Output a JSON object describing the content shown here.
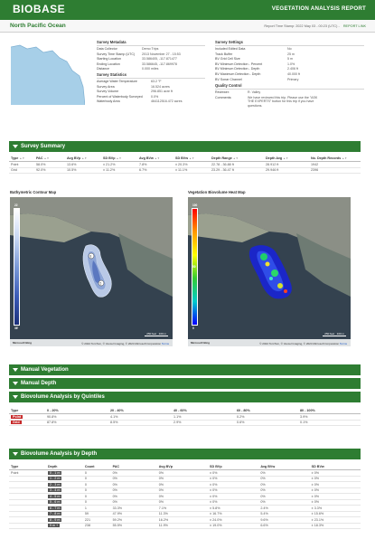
{
  "header": {
    "logo": "BIOBASE",
    "report_title": "VEGETATION ANALYSIS REPORT",
    "location": "North Pacific Ocean",
    "timestamp": "Report Time Stamp: 2022 May 03 - 00:23 (UTC)",
    "report_link": "REPORT LINK"
  },
  "survey_metadata": {
    "title": "Survey Metadata",
    "rows": [
      {
        "k": "Data Collector",
        "v": "Demo Trips"
      },
      {
        "k": "Survey Time Stamp (UTC)",
        "v": "2013 November 27 - 15:53"
      },
      {
        "k": "Starting Location",
        "v": "33.586405, -117.871477"
      },
      {
        "k": "Ending Location",
        "v": "33.586645, -117.869978"
      },
      {
        "k": "Distance",
        "v": "0.000 miles"
      }
    ]
  },
  "survey_statistics": {
    "title": "Survey Statistics",
    "rows": [
      {
        "k": "Average Water Temperature",
        "v": "63.2 °F"
      },
      {
        "k": "Survey Area",
        "v": "16.524 acres"
      },
      {
        "k": "Survey Volume",
        "v": "296.851 acre ft"
      },
      {
        "k": "Percent of Waterbody Surveyed",
        "v": "0.0%"
      },
      {
        "k": "Waterbody Area",
        "v": "464112516.472 acres"
      }
    ]
  },
  "survey_settings": {
    "title": "Survey Settings",
    "rows": [
      {
        "k": "Included Edited Data",
        "v": "No"
      },
      {
        "k": "Track Buffer",
        "v": "25 m"
      },
      {
        "k": "BV Grid Cell Size",
        "v": "5 m"
      },
      {
        "k": "BV Minimum Detection - Percent",
        "v": "1.0%"
      },
      {
        "k": "BV Minimum Detection - Depth",
        "v": "2.406 ft"
      },
      {
        "k": "BV Maximum Detection - Depth",
        "v": "40.000 ft"
      },
      {
        "k": "BV Sonar Channel",
        "v": "Primary"
      }
    ]
  },
  "quality_control": {
    "title": "Quality Control",
    "reviewer_k": "Reviewer:",
    "reviewer_v": "R. Valley",
    "comments_k": "Comments:",
    "comments_v": "We have reviewed this trip. Please use the \"ASK THE EXPERTS\" button for this trip if you have questions."
  },
  "survey_summary": {
    "title": "Survey Summary",
    "headers": [
      "Type",
      "PAC",
      "Avg BVp",
      "SD BVp",
      "Avg BVw",
      "SD BVw",
      "Depth Range",
      "Depth Avg",
      "No. Depth Records"
    ],
    "rows": [
      [
        "Point",
        "58.0%",
        "13.6%",
        "± 21.2%",
        "7.8%",
        "± 20.3%",
        "22.78 - 36.88 ft",
        "28.912 ft",
        "1942"
      ],
      [
        "Grid",
        "92.0%",
        "10.5%",
        "± 11.2%",
        "6.7%",
        "± 11.1%",
        "23.29 - 36.47 ft",
        "29.946 ft",
        "2396"
      ]
    ]
  },
  "maps": {
    "left_title": "Bathymetric Contour Map",
    "right_title": "Vegetation Biovolume Heat Map",
    "left_legend_top": "22",
    "left_legend_top2": "27",
    "left_legend_bottom": "36'",
    "right_legend_top": "100",
    "right_legend_mid": "50",
    "right_legend_low": "10",
    "right_legend_bottom": "0",
    "brand": "Microsoft Bing",
    "copyright": "© 2024 TomTom, © Vexcel Imaging, © 2024 Microsoft Corporation",
    "terms": "Terms",
    "scale_left_1": "250 feet",
    "scale_left_2": "100 m",
    "scale_right_1": "250 feet",
    "scale_right_2": "100 m"
  },
  "sections": {
    "manual_vegetation": "Manual Vegetation",
    "manual_depth": "Manual Depth",
    "quintiles": "Biovolume Analysis by Quintiles",
    "by_depth": "Biovolume Analysis by Depth"
  },
  "quintiles": {
    "headers": [
      "Type",
      "0 - 20%",
      "20 - 40%",
      "40 - 60%",
      "60 - 80%",
      "80 - 100%"
    ],
    "rows": [
      [
        "Point",
        "90.8%",
        "4.1%",
        "1.1%",
        "0.2%",
        "3.9%"
      ],
      [
        "Grid",
        "87.8%",
        "8.5%",
        "2.9%",
        "0.6%",
        "0.1%"
      ]
    ]
  },
  "by_depth": {
    "headers": [
      "Type",
      "Depth",
      "Count",
      "PAC",
      "Avg BVp",
      "SD BVp",
      "Avg BVw",
      "SD BVw"
    ],
    "rows": [
      [
        "Point",
        "0 - 1 m",
        "0",
        "0%",
        "0%",
        "± 0%",
        "0%",
        "± 0%"
      ],
      [
        "",
        "1 - 2 m",
        "0",
        "0%",
        "0%",
        "± 0%",
        "0%",
        "± 0%"
      ],
      [
        "",
        "2 - 3 m",
        "0",
        "0%",
        "0%",
        "± 0%",
        "0%",
        "± 0%"
      ],
      [
        "",
        "3 - 4 m",
        "0",
        "0%",
        "0%",
        "± 0%",
        "0%",
        "± 0%"
      ],
      [
        "",
        "4 - 5 m",
        "0",
        "0%",
        "0%",
        "± 0%",
        "0%",
        "± 0%"
      ],
      [
        "",
        "5 - 6 m",
        "0",
        "0%",
        "0%",
        "± 0%",
        "0%",
        "± 0%"
      ],
      [
        "",
        "6 - 7 m",
        "1",
        "33.3%",
        "7.1%",
        "± 5.8%",
        "2.4%",
        "± 3.3%"
      ],
      [
        "",
        "7 - 8 m",
        "59",
        "47.9%",
        "11.3%",
        "± 16.7%",
        "5.4%",
        "± 15.6%"
      ],
      [
        "",
        "8 - 9 m",
        "221",
        "59.2%",
        "16.2%",
        "± 24.0%",
        "9.6%",
        "± 23.1%"
      ],
      [
        "",
        "9 m +",
        "238",
        "55.5%",
        "11.9%",
        "± 19.0%",
        "6.6%",
        "± 18.3%"
      ]
    ]
  },
  "colors": {
    "brand_green": "#2e7d32",
    "red_tag": "#c62828"
  }
}
